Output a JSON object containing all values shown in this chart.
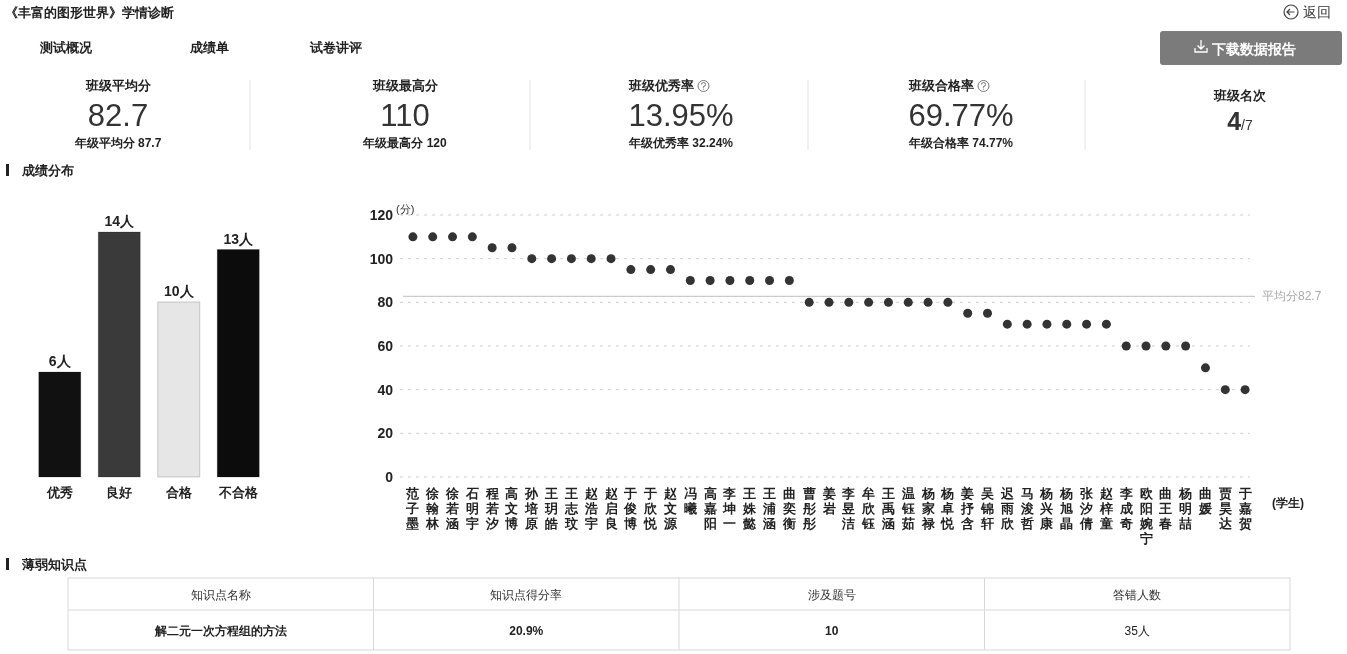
{
  "chart_data": [
    {
      "type": "other",
      "title": "《丰富的图形世界》学情诊断",
      "annotations": [
        "返回",
        "测试概况",
        "成绩单",
        "试卷讲评",
        "下载数据报告"
      ]
    },
    {
      "type": "other",
      "title": "班级平均分",
      "subtitle": "年级平均分 87.7",
      "annotations": [
        "82.7"
      ]
    },
    {
      "type": "other",
      "title": "班级最高分",
      "subtitle": "年级最高分 120",
      "annotations": [
        "110"
      ]
    },
    {
      "type": "other",
      "title": "班级优秀率",
      "subtitle": "年级优秀率 32.24%",
      "annotations": [
        "13.95%"
      ]
    },
    {
      "type": "other",
      "title": "班级合格率",
      "subtitle": "年级合格率 74.77%",
      "annotations": [
        "69.77%"
      ]
    },
    {
      "type": "other",
      "title": "班级名次",
      "annotations": [
        "4",
        "/7"
      ]
    },
    {
      "type": "bar",
      "title": "成绩分布",
      "categories": [
        "优秀",
        "良好",
        "合格",
        "不合格"
      ],
      "values": [
        6,
        14,
        10,
        13
      ],
      "colors": [
        "#111111",
        "#3a3a3a",
        "#e6e6e6",
        "#0c0c0c"
      ],
      "value_labels": [
        "6人",
        "14人",
        "10人",
        "13人"
      ]
    },
    {
      "type": "scatter",
      "categories": [
        "范子墨",
        "徐翰林",
        "徐若涵",
        "石明宇",
        "程若汐",
        "高文博",
        "孙培原",
        "王玥皓",
        "王志玟",
        "赵浩宇",
        "赵启良",
        "于俊博",
        "于欣悦",
        "赵文源",
        "冯曦",
        "高嘉阳",
        "李坤一",
        "王姝懿",
        "王浦涵",
        "曲奕衡",
        "曹彤彤",
        "姜岩",
        "李昱洁",
        "牟欣钰",
        "王禹涵",
        "温钰茹",
        "杨家禄",
        "杨卓悦",
        "姜抒含",
        "吴锦轩",
        "迟雨欣",
        "马浚哲",
        "杨兴康",
        "杨旭晶",
        "张汐倩",
        "赵梓童",
        "李成奇",
        "欧阳婉宁",
        "曲王春",
        "杨明喆",
        "曲媛",
        "贾昊达",
        "于嘉贺"
      ],
      "values": [
        110,
        110,
        110,
        110,
        105,
        105,
        100,
        100,
        100,
        100,
        100,
        95,
        95,
        95,
        90,
        90,
        90,
        90,
        90,
        90,
        80,
        80,
        80,
        80,
        80,
        80,
        80,
        80,
        75,
        75,
        70,
        70,
        70,
        70,
        70,
        70,
        60,
        60,
        60,
        60,
        50,
        40,
        40
      ],
      "color": "#333333",
      "marker": "circle",
      "ylabel": "(分)",
      "xlabel": "(学生)",
      "ylim": [
        0,
        120
      ],
      "yticks": [
        0,
        20,
        40,
        60,
        80,
        100,
        120
      ],
      "grid": "y",
      "ref_lines": [
        {
          "axis": "y",
          "value": 82.7,
          "label": "平均分82.7",
          "color": "#cccccc"
        }
      ]
    },
    {
      "type": "other",
      "title": "薄弱知识点",
      "categories": [
        "知识点名称",
        "知识点得分率",
        "涉及题号",
        "答错人数"
      ],
      "annotations": [
        "解二元一次方程组的方法",
        "20.9%",
        "10",
        "35人"
      ]
    }
  ]
}
